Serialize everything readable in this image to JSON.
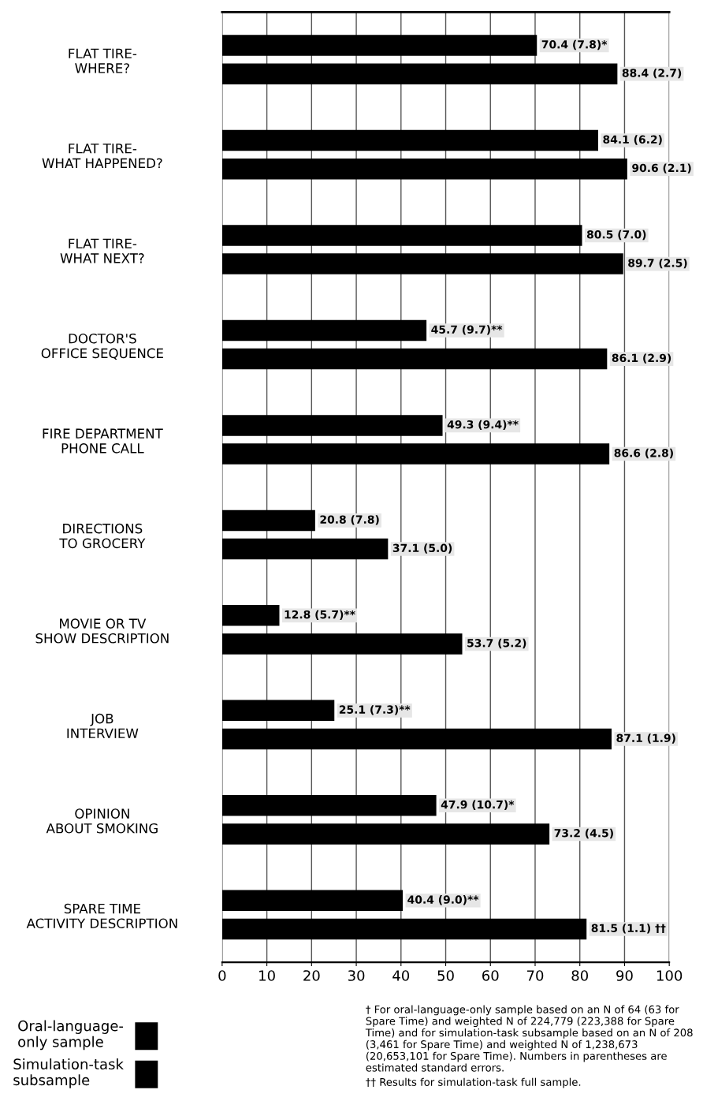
{
  "chart_data": {
    "type": "bar",
    "orientation": "horizontal",
    "categories": [
      "FLAT TIRE-\nWHERE?",
      "FLAT TIRE-\nWHAT HAPPENED?",
      "FLAT TIRE-\nWHAT NEXT?",
      "DOCTOR'S\nOFFICE SEQUENCE",
      "FIRE DEPARTMENT\nPHONE CALL",
      "DIRECTIONS\nTO GROCERY",
      "MOVIE OR TV\nSHOW DESCRIPTION",
      "JOB\nINTERVIEW",
      "OPINION\nABOUT SMOKING",
      "SPARE TIME\nACTIVITY DESCRIPTION"
    ],
    "series": [
      {
        "name": "Oral-language-\nonly sample",
        "color": "#000000",
        "values": [
          70.4,
          84.1,
          80.5,
          45.7,
          49.3,
          20.8,
          12.8,
          25.1,
          47.9,
          40.4
        ],
        "value_labels": [
          "70.4 (7.8)*",
          "84.1 (6.2)",
          "80.5 (7.0)",
          "45.7 (9.7)**",
          "49.3 (9.4)**",
          "20.8 (7.8)",
          "12.8 (5.7)**",
          "25.1 (7.3)**",
          "47.9 (10.7)*",
          "40.4 (9.0)**"
        ]
      },
      {
        "name": "Simulation-task\nsubsample",
        "color": "#000000",
        "values": [
          88.4,
          90.6,
          89.7,
          86.1,
          86.6,
          37.1,
          53.7,
          87.1,
          73.2,
          81.5
        ],
        "value_labels": [
          "88.4 (2.7)",
          "90.6 (2.1)",
          "89.7 (2.5)",
          "86.1 (2.9)",
          "86.6 (2.8)",
          "37.1 (5.0)",
          "53.7 (5.2)",
          "87.1 (1.9)",
          "73.2 (4.5)",
          "81.5 (1.1) ††"
        ]
      }
    ],
    "xlim": [
      0,
      100
    ],
    "xticks": [
      0,
      10,
      20,
      30,
      40,
      50,
      60,
      70,
      80,
      90,
      100
    ],
    "grid": "x",
    "legend": "bottom left",
    "annotations": [
      "† For oral-language-only sample based on an N of 64 (63 for Spare Time) and weighted N of 224,779 (223,388 for Spare Time) and for simulation-task subsample based on an N of 208 (3,461 for Spare Time) and weighted N of 1,238,673 (20,653,101 for Spare Time). Numbers in parentheses are estimated standard errors.",
      "†† Results for simulation-task full sample."
    ]
  }
}
